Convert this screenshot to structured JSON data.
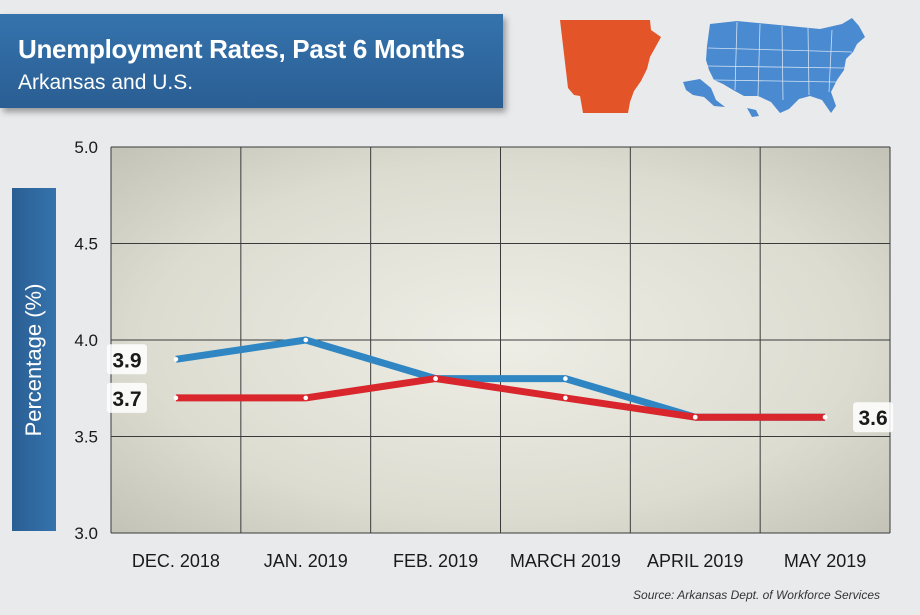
{
  "header": {
    "title": "Unemployment Rates, Past 6 Months",
    "subtitle": "Arkansas and U.S."
  },
  "source": "Source: Arkansas Dept. of Workforce Services",
  "colors": {
    "us": "#2f86c2",
    "arkansas": "#d8262c",
    "arkansas_map": "#e35528",
    "us_map": "#4a8ad0",
    "title_bg": "#2f68a0"
  },
  "chart_data": {
    "type": "line",
    "title": "Unemployment Rates, Past 6 Months",
    "subtitle": "Arkansas and U.S.",
    "xlabel": "",
    "ylabel": "Percentage (%)",
    "ylim": [
      3.0,
      5.0
    ],
    "yticks": [
      "3.0",
      "3.5",
      "4.0",
      "4.5",
      "5.0"
    ],
    "grid": true,
    "categories": [
      "DEC. 2018",
      "JAN. 2019",
      "FEB. 2019",
      "MARCH 2019",
      "APRIL 2019",
      "MAY 2019"
    ],
    "series": [
      {
        "name": "U.S.",
        "color": "#2f86c2",
        "values": [
          3.9,
          4.0,
          3.8,
          3.8,
          3.6,
          3.6
        ]
      },
      {
        "name": "Arkansas",
        "color": "#d8262c",
        "values": [
          3.7,
          3.7,
          3.8,
          3.7,
          3.6,
          3.6
        ]
      }
    ],
    "annotations": [
      {
        "text": "3.9",
        "series": "U.S.",
        "index": 0
      },
      {
        "text": "3.7",
        "series": "Arkansas",
        "index": 0
      },
      {
        "text": "3.6",
        "series": "Arkansas",
        "index": 5
      }
    ]
  }
}
